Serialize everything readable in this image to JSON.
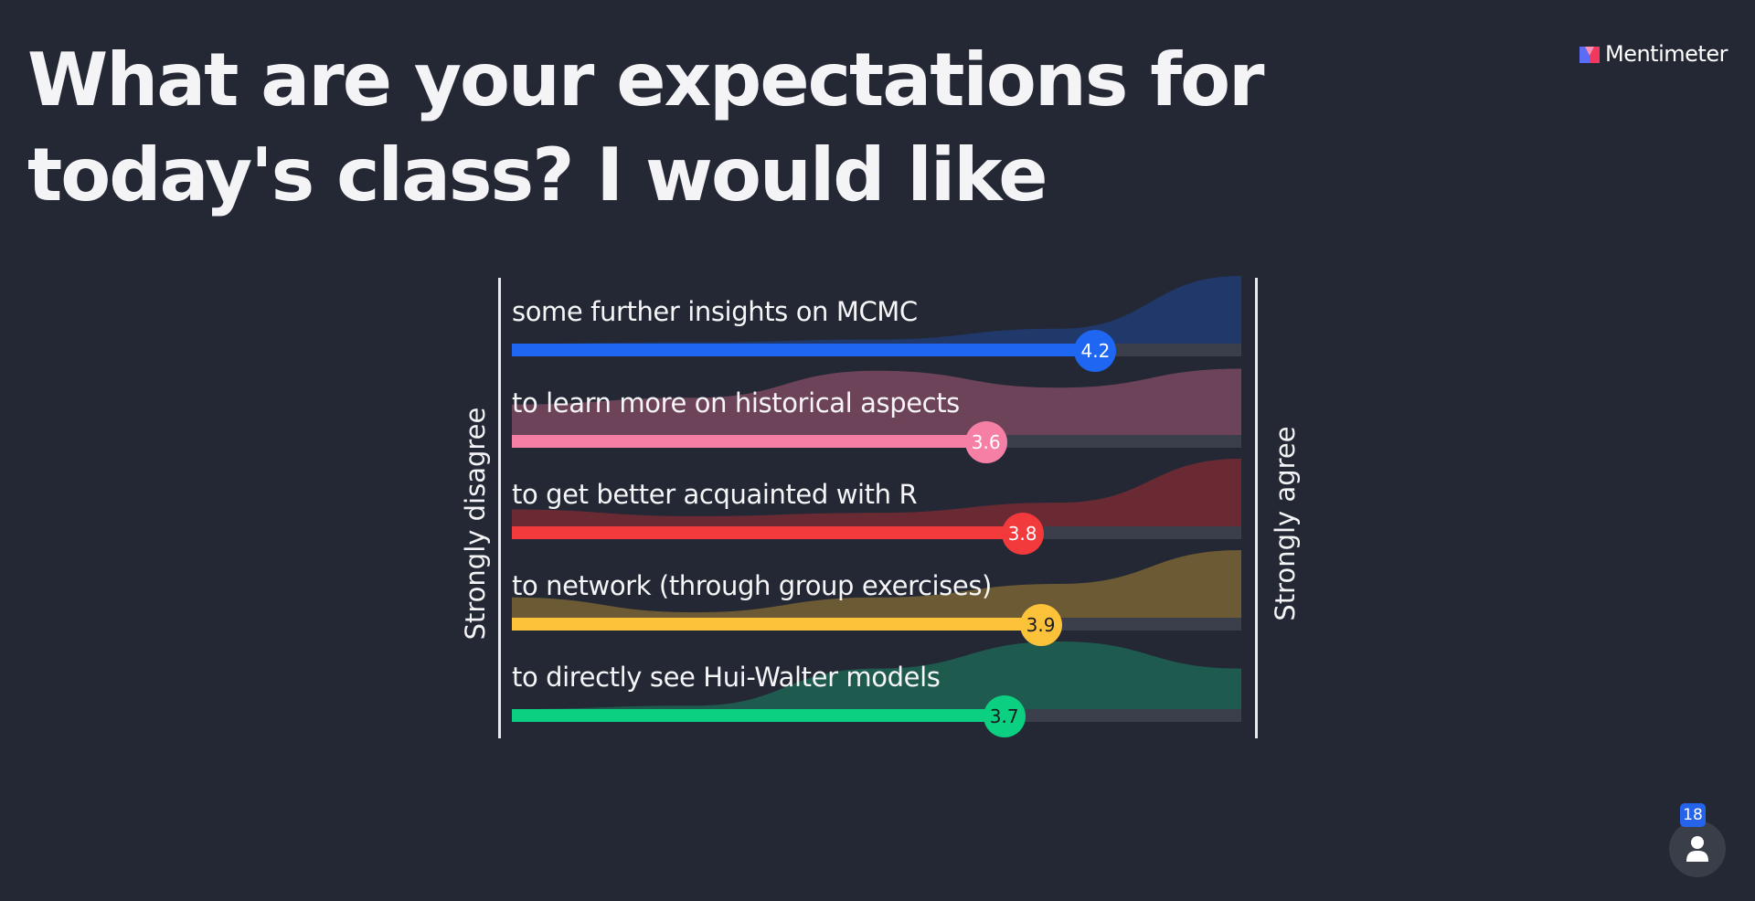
{
  "title": "What are your expectations for today's class? I would like",
  "brand": {
    "name": "Mentimeter",
    "icon": "mentimeter-logo-icon"
  },
  "chart_data": {
    "type": "bar",
    "scale": [
      1,
      5
    ],
    "left_label": "Strongly disagree",
    "right_label": "Strongly agree",
    "series": [
      {
        "name": "some further insights on MCMC",
        "value": 4.2,
        "value_label": "4.2",
        "color": "#1f66f2",
        "dist_color": "#20386a",
        "text_color": "#ffffff",
        "distribution": [
          0.0,
          0.02,
          0.06,
          0.22,
          1.0
        ]
      },
      {
        "name": "to learn more on historical aspects",
        "value": 3.6,
        "value_label": "3.6",
        "color": "#f67fa5",
        "dist_color": "#6c4358",
        "text_color": "#ffffff",
        "distribution": [
          0.45,
          0.55,
          0.95,
          0.7,
          0.98
        ]
      },
      {
        "name": "to get better acquainted with R",
        "value": 3.8,
        "value_label": "3.8",
        "color": "#f2393b",
        "dist_color": "#6a2a33",
        "text_color": "#ffffff",
        "distribution": [
          0.25,
          0.15,
          0.2,
          0.35,
          1.0
        ]
      },
      {
        "name": "to network (through group exercises)",
        "value": 3.9,
        "value_label": "3.9",
        "color": "#fcc23a",
        "dist_color": "#6b5a34",
        "text_color": "#1b1b1f",
        "distribution": [
          0.3,
          0.08,
          0.3,
          0.5,
          1.0
        ]
      },
      {
        "name": "to directly see Hui-Walter models",
        "value": 3.7,
        "value_label": "3.7",
        "color": "#0bd082",
        "dist_color": "#1e5b4e",
        "text_color": "#1b1b1f",
        "distribution": [
          0.0,
          0.05,
          0.6,
          1.0,
          0.6
        ]
      }
    ]
  },
  "participants": {
    "count": "18",
    "icon": "person-icon"
  }
}
